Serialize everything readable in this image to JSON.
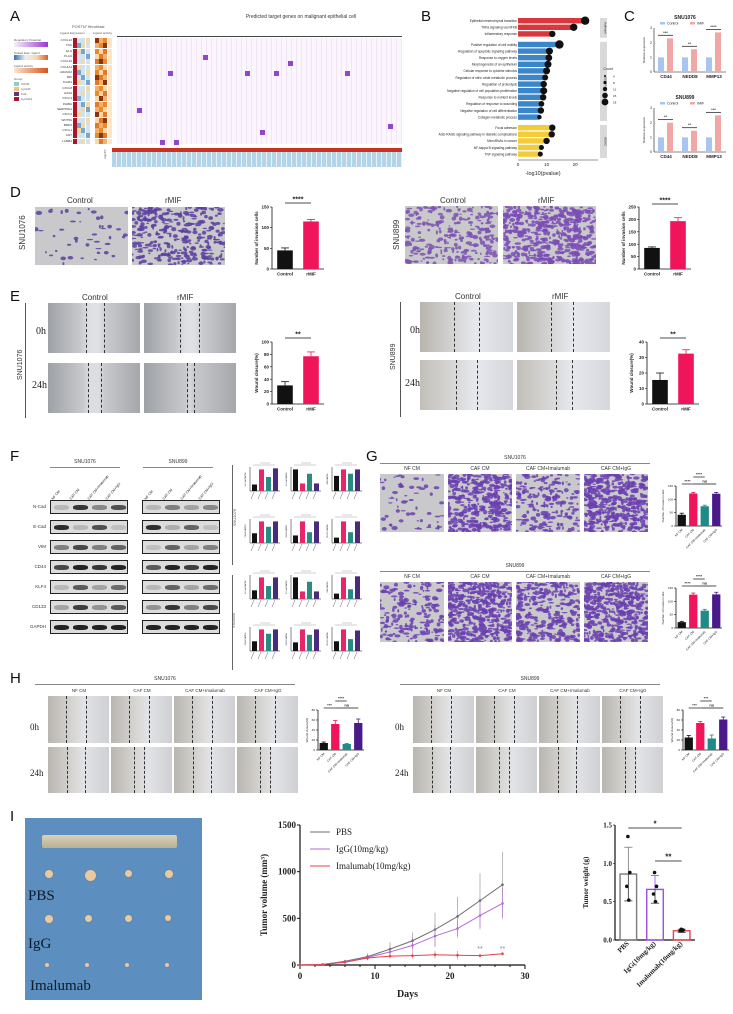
{
  "figure": {
    "panels": [
      "A",
      "B",
      "C",
      "D",
      "E",
      "F",
      "G",
      "H",
      "I"
    ]
  },
  "panel_a": {
    "letter": "A",
    "title": "Predicted target genes on malignant epithelial cell",
    "subtitle": "POSTN\" fibroblast",
    "col_headers": [
      "Ligand Expression",
      "Ligand activity"
    ],
    "legend": {
      "regulatory_potential": "Regulatory Potential",
      "regulatory_ticks": [
        "0",
        "0.0025",
        "0.0050",
        "0.0075"
      ],
      "scaled_expression": "Scaled Expr. ligand",
      "scaled_ticks": [
        "-1.0",
        "-0.5",
        "0.0",
        "0.5",
        "1.0"
      ],
      "ligand_activity": "Ligand activity",
      "activity_ticks": [
        "0.100",
        "0.125",
        "0.150",
        "0.175"
      ],
      "group": "Group",
      "groups": [
        "cSCOP",
        "myoCAF",
        "iCAF",
        "myoCAF2"
      ]
    },
    "ligands": [
      "CXCL12",
      "TNC",
      "ELN",
      "PLAU",
      "CXCL16",
      "COL4A1",
      "ADAM12",
      "MIF",
      "ICAM1",
      "CXCL8",
      "HAS2",
      "CXCL3",
      "INHBA",
      "SERPINE1",
      "CXCL2",
      "WNT5A",
      "BMP2",
      "CXCL1",
      "AGT",
      "LAMB1"
    ],
    "bottom_label": "log2FC"
  },
  "panel_b": {
    "letter": "B",
    "facets": [
      "Hallmark",
      "GO BP",
      "KEGG"
    ],
    "count_legend": {
      "title": "Count",
      "values": [
        "4",
        "8",
        "12",
        "15",
        "18"
      ]
    }
  },
  "panel_c": {
    "letter": "C",
    "legend": [
      "Control",
      "rMIF"
    ]
  },
  "panel_d": {
    "letter": "D",
    "images": [
      {
        "cell_line": "SNU1076",
        "labels": [
          "Control",
          "rMIF"
        ]
      },
      {
        "cell_line": "SNU899",
        "labels": [
          "Control",
          "rMIF"
        ]
      }
    ]
  },
  "panel_e": {
    "letter": "E",
    "rows": [
      "0h",
      "24h"
    ],
    "images": [
      {
        "cell_line": "SNU1076",
        "labels": [
          "Control",
          "rMIF"
        ]
      },
      {
        "cell_line": "SNU899",
        "labels": [
          "Control",
          "rMIF"
        ]
      }
    ]
  },
  "panel_f": {
    "letter": "F",
    "cell_lines": [
      "SNU1076",
      "SNU899"
    ],
    "lane_labels": [
      "NF CM",
      "CAF CM",
      "CAF CM+Imalumab",
      "CAF CM+IgG"
    ],
    "proteins": [
      "N-Cad",
      "E-Cad",
      "VIM",
      "CD44",
      "KLF4",
      "CD133",
      "GAPDH"
    ],
    "side_labels": [
      "SNU1076",
      "SNU899"
    ]
  },
  "panel_g": {
    "letter": "G",
    "groups": [
      "NF CM",
      "CAF CM",
      "CAF CM+Imalumab",
      "CAF CM+IgG"
    ],
    "cell_lines": [
      "SNU1076",
      "SNU899"
    ]
  },
  "panel_h": {
    "letter": "H",
    "groups": [
      "NF CM",
      "CAF CM",
      "CAF CM+Imalumab",
      "CAF CM+IgG"
    ],
    "cell_lines": [
      "SNU1076",
      "SNU899"
    ],
    "rows": [
      "0h",
      "24h"
    ]
  },
  "panel_i": {
    "letter": "I",
    "photo_labels": [
      "PBS",
      "IgG",
      "Imalumab"
    ]
  },
  "chart_data": [
    {
      "id": "B",
      "type": "bar",
      "orientation": "horizontal",
      "xlabel": "-log10(pvalue)",
      "xticks": [
        "0",
        "10",
        "20"
      ],
      "categories": [
        "Epithelial mesenchymal transition",
        "TNFa signaling via NFKB",
        "Inflammatory response",
        "Positive regulation of cell motility",
        "Regulation of apoptotic signaling pathway",
        "Response to oxygen levels",
        "Morphogenesis of an epithelium",
        "Cellular response to cytokine stimulus",
        "Regulation of nitric oxide metabolic process",
        "Regulation of proteolysis",
        "Negative regulation of cell population proliferation",
        "Response to nutrient levels",
        "Regulation of response to wounding",
        "Negative regulation of cell differentiation",
        "Collagen metabolic process",
        "Focal adhesion",
        "AGE-RAGE signaling pathway in diabetic complications",
        "MicroRNAs in cancer",
        "NF-kappa B signaling pathway",
        "TNF signaling pathway"
      ],
      "values": [
        23.5,
        19.5,
        12,
        14.5,
        11,
        10.8,
        10.5,
        10,
        9.5,
        9,
        9,
        8.8,
        8.2,
        8,
        7.5,
        12,
        11.8,
        10,
        8.2,
        7.8
      ],
      "counts": [
        18,
        15,
        12,
        18,
        14,
        13,
        14,
        14,
        11,
        12,
        14,
        12,
        10,
        12,
        6,
        12,
        12,
        12,
        8,
        8
      ],
      "facet": [
        "Hallmark",
        "Hallmark",
        "Hallmark",
        "GO BP",
        "GO BP",
        "GO BP",
        "GO BP",
        "GO BP",
        "GO BP",
        "GO BP",
        "GO BP",
        "GO BP",
        "GO BP",
        "GO BP",
        "GO BP",
        "KEGG",
        "KEGG",
        "KEGG",
        "KEGG",
        "KEGG"
      ],
      "colors": {
        "Hallmark": "#d9363e",
        "GO BP": "#3a86c8",
        "KEGG": "#f2cc3a"
      }
    },
    {
      "id": "C-SNU1076",
      "type": "bar",
      "title": "SNU1076",
      "ylabel": "Relative expression",
      "categories": [
        "CD44",
        "NEDD8",
        "MMP13"
      ],
      "series": [
        {
          "name": "Control",
          "values": [
            1,
            1,
            1
          ],
          "color": "#a9c4ef"
        },
        {
          "name": "rMIF",
          "values": [
            2.3,
            1.55,
            2.7
          ],
          "color": "#f2a7a7"
        }
      ],
      "significance": [
        "***",
        "**",
        "****"
      ],
      "ylim": [
        0,
        3
      ],
      "yticks": [
        "0",
        "1",
        "2",
        "3"
      ]
    },
    {
      "id": "C-SNU899",
      "type": "bar",
      "title": "SNU899",
      "ylabel": "Relative expression",
      "categories": [
        "CD44",
        "NEDD8",
        "MMP13"
      ],
      "series": [
        {
          "name": "Control",
          "values": [
            1,
            1,
            1
          ],
          "color": "#a9c4ef"
        },
        {
          "name": "rMIF",
          "values": [
            2.0,
            1.45,
            2.5
          ],
          "color": "#f2a7a7"
        }
      ],
      "significance": [
        "**",
        "**",
        "***"
      ],
      "ylim": [
        0,
        3
      ],
      "yticks": [
        "0",
        "1",
        "2",
        "3"
      ]
    },
    {
      "id": "D-SNU1076",
      "type": "bar",
      "ylabel": "Number of invasion cells",
      "categories": [
        "Control",
        "rMIF"
      ],
      "values": [
        45,
        115
      ],
      "errors": [
        6,
        5
      ],
      "colors": [
        "#111111",
        "#f0145a"
      ],
      "significance": "****",
      "ylim": [
        0,
        150
      ],
      "yticks": [
        "0",
        "50",
        "100",
        "150"
      ]
    },
    {
      "id": "D-SNU899",
      "type": "bar",
      "ylabel": "Number of invasion cells",
      "categories": [
        "Control",
        "rMIF"
      ],
      "values": [
        85,
        193
      ],
      "errors": [
        4,
        14
      ],
      "colors": [
        "#111111",
        "#f0145a"
      ],
      "significance": "****",
      "ylim": [
        0,
        250
      ],
      "yticks": [
        "0",
        "50",
        "100",
        "150",
        "200",
        "250"
      ]
    },
    {
      "id": "E-SNU1076",
      "type": "bar",
      "ylabel": "Wound closure(%)",
      "categories": [
        "Control",
        "rMIF"
      ],
      "values": [
        30,
        77
      ],
      "errors": [
        6,
        7
      ],
      "colors": [
        "#111111",
        "#f0145a"
      ],
      "significance": "**",
      "ylim": [
        0,
        100
      ],
      "yticks": [
        "0",
        "20",
        "40",
        "60",
        "80",
        "100"
      ]
    },
    {
      "id": "E-SNU899",
      "type": "bar",
      "ylabel": "Wound closure(%)",
      "categories": [
        "Control",
        "rMIF"
      ],
      "values": [
        15.5,
        32.5
      ],
      "errors": [
        4.5,
        2.5
      ],
      "colors": [
        "#111111",
        "#f0145a"
      ],
      "significance": "**",
      "ylim": [
        0,
        40
      ],
      "yticks": [
        "0",
        "10",
        "20",
        "30",
        "40"
      ]
    },
    {
      "id": "F-quant",
      "type": "bar",
      "categories": [
        "NF CM",
        "CAF CM",
        "CAF CM+Imalumab",
        "CAF CM+IgG"
      ],
      "colors": [
        "#111111",
        "#e8246a",
        "#2a8a82",
        "#4a2a7a"
      ],
      "series": [
        {
          "name": "SNU1076 N-Cad/GAPDH",
          "values": [
            0.3,
            1.0,
            0.65,
            1.05
          ]
        },
        {
          "name": "SNU1076 E-Cad/GAPDH",
          "values": [
            1.0,
            0.35,
            0.8,
            0.35
          ]
        },
        {
          "name": "SNU1076 VIM/GAPDH",
          "values": [
            0.7,
            1.0,
            0.8,
            1.0
          ]
        },
        {
          "name": "SNU1076 CD44/GAPDH",
          "values": [
            0.45,
            1.0,
            0.75,
            1.0
          ]
        },
        {
          "name": "SNU1076 KLF4/GAPDH",
          "values": [
            0.35,
            1.0,
            0.5,
            1.0
          ]
        },
        {
          "name": "SNU1076 CD133/GAPDH",
          "values": [
            0.25,
            1.0,
            0.5,
            1.0
          ]
        },
        {
          "name": "SNU899 N-Cad/GAPDH",
          "values": [
            0.4,
            1.0,
            0.6,
            1.0
          ]
        },
        {
          "name": "SNU899 E-Cad/GAPDH",
          "values": [
            1.0,
            0.35,
            0.8,
            0.35
          ]
        },
        {
          "name": "SNU899 VIM/GAPDH",
          "values": [
            0.25,
            1.0,
            0.45,
            1.05
          ]
        },
        {
          "name": "SNU899 CD44/GAPDH",
          "values": [
            0.45,
            1.0,
            0.8,
            1.0
          ]
        },
        {
          "name": "SNU899 KLF4/GAPDH",
          "values": [
            0.4,
            1.0,
            0.75,
            1.0
          ]
        },
        {
          "name": "SNU899 CD133/GAPDH",
          "values": [
            0.45,
            1.0,
            0.55,
            0.95
          ]
        }
      ]
    },
    {
      "id": "G-SNU1076",
      "type": "bar",
      "ylabel": "Number of invasion cells",
      "categories": [
        "NF CM",
        "CAF CM",
        "CAF CM+Imalumab",
        "CAF CM+IgG"
      ],
      "values": [
        42,
        122,
        74,
        121
      ],
      "errors": [
        6,
        4,
        4,
        5
      ],
      "colors": [
        "#111111",
        "#f0145a",
        "#1f8a87",
        "#4a1a8a"
      ],
      "significance": [
        "****",
        "****",
        "ns"
      ],
      "ylim": [
        0,
        150
      ],
      "yticks": [
        "0",
        "50",
        "100",
        "150"
      ]
    },
    {
      "id": "G-SNU899",
      "type": "bar",
      "ylabel": "Number of invasion cells",
      "categories": [
        "NF CM",
        "CAF CM",
        "CAF CM+Imalumab",
        "CAF CM+IgG"
      ],
      "values": [
        22,
        125,
        65,
        126
      ],
      "errors": [
        3,
        6,
        5,
        8
      ],
      "colors": [
        "#111111",
        "#f0145a",
        "#1f8a87",
        "#4a1a8a"
      ],
      "significance": [
        "****",
        "****",
        "ns"
      ],
      "ylim": [
        0,
        150
      ],
      "yticks": [
        "0",
        "50",
        "100",
        "150"
      ]
    },
    {
      "id": "H-SNU1076",
      "type": "bar",
      "ylabel": "Wound closure(%)",
      "categories": [
        "NF CM",
        "CAF CM",
        "CAF CM+Imalumab",
        "CAF CM+IgG"
      ],
      "values": [
        14,
        52,
        12,
        54
      ],
      "errors": [
        2,
        7,
        1,
        8
      ],
      "colors": [
        "#111111",
        "#f0145a",
        "#1f8a87",
        "#4a1a8a"
      ],
      "significance": [
        "***",
        "****",
        "ns"
      ],
      "ylim": [
        0,
        80
      ],
      "yticks": [
        "0",
        "20",
        "40",
        "60",
        "80"
      ]
    },
    {
      "id": "H-SNU899",
      "type": "bar",
      "ylabel": "Wound closure(%)",
      "categories": [
        "NF CM",
        "CAF CM",
        "CAF CM+Imalumab",
        "CAF CM+IgG"
      ],
      "values": [
        25,
        54,
        23,
        61
      ],
      "errors": [
        4,
        3,
        7,
        5
      ],
      "colors": [
        "#111111",
        "#f0145a",
        "#1f8a87",
        "#4a1a8a"
      ],
      "significance": [
        "***",
        "***",
        "ns"
      ],
      "ylim": [
        0,
        80
      ],
      "yticks": [
        "0",
        "20",
        "40",
        "60",
        "80"
      ]
    },
    {
      "id": "I-volume",
      "type": "line",
      "xlabel": "Days",
      "ylabel": "Tumor volume (mm³)",
      "x": [
        0,
        3,
        6,
        9,
        12,
        15,
        18,
        21,
        24,
        27
      ],
      "series": [
        {
          "name": "PBS",
          "color": "#6f6f6f",
          "values": [
            0,
            5,
            40,
            90,
            170,
            260,
            380,
            520,
            690,
            860
          ],
          "errors": [
            0,
            5,
            15,
            35,
            75,
            90,
            180,
            210,
            290,
            350
          ]
        },
        {
          "name": "IgG(10mg/kg)",
          "color": "#b46ad8",
          "values": [
            0,
            5,
            35,
            80,
            140,
            210,
            310,
            390,
            530,
            660
          ],
          "errors": [
            0,
            5,
            12,
            30,
            60,
            80,
            120,
            100,
            150,
            170
          ]
        },
        {
          "name": "Imalumab(10mg/kg)",
          "color": "#e0454f",
          "values": [
            0,
            5,
            30,
            75,
            95,
            100,
            110,
            105,
            100,
            120
          ],
          "errors": [
            0,
            3,
            10,
            20,
            25,
            30,
            40,
            45,
            20,
            20
          ]
        }
      ],
      "annotations": [
        "**",
        "**"
      ],
      "xlim": [
        0,
        30
      ],
      "ylim": [
        0,
        1500
      ],
      "xticks": [
        "0",
        "10",
        "20",
        "30"
      ],
      "yticks": [
        "0",
        "500",
        "1000",
        "1500"
      ]
    },
    {
      "id": "I-weight",
      "type": "bar",
      "ylabel": "Tumor weight (g)",
      "categories": [
        "PBS",
        "IgG(10mg/kg)",
        "Imalumab(10mg/kg)"
      ],
      "values": [
        0.86,
        0.66,
        0.12
      ],
      "errors": [
        0.35,
        0.18,
        0.02
      ],
      "points": [
        [
          1.35,
          0.88,
          0.7,
          0.52
        ],
        [
          0.88,
          0.7,
          0.6,
          0.5
        ],
        [
          0.14,
          0.13,
          0.12,
          0.12
        ]
      ],
      "colors": [
        "#7a7a7a",
        "#9b4ee0",
        "#e0454f"
      ],
      "significance": [
        "*",
        "**"
      ],
      "ylim": [
        0,
        1.5
      ],
      "yticks": [
        "0.0",
        "0.5",
        "1.0",
        "1.5"
      ]
    }
  ]
}
